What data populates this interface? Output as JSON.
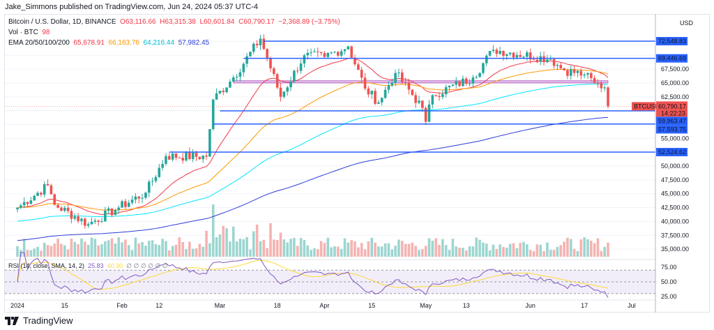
{
  "publisher": "Jake_Simmons published on TradingView.com, Jun 24, 2024 05:37 UTC-4",
  "legend": {
    "symbol": "Bitcoin / U.S. Dollar, 1D, BINANCE",
    "open": "O63,116.66",
    "high": "H63,315.38",
    "low": "L60,601.84",
    "close": "C60,790.17",
    "change": "−2,368.89 (−3.75%)",
    "vol_label": "Vol · BTC",
    "vol_value": "98",
    "ema_label": "EMA 20/50/100/200",
    "ema_values": [
      "65,678.91",
      "66,163.76",
      "64,216.44",
      "57,982.45"
    ]
  },
  "rsi_legend": {
    "label": "RSI (14, close, SMA, 14, 2)",
    "rsi": "25.83",
    "sma": "40.30",
    "na": "∅ ∅ ∅ ∅ ∅ ∅"
  },
  "price_axis": {
    "unit": "USD",
    "ticks": [
      "67,500.00",
      "65,000.00",
      "62,500.00",
      "55,000.00",
      "50,000.00",
      "47,500.00",
      "45,000.00",
      "42,500.00",
      "40,000.00",
      "37,500.00",
      "35,000.00"
    ],
    "last_price": "60,790.17",
    "countdown": "14:22:23",
    "symbol_tag": "BTCUSD"
  },
  "rsi_axis": [
    "75.00",
    "50.00",
    "25.00"
  ],
  "time_axis": [
    "2024",
    "15",
    "Feb",
    "12",
    "Mar",
    "18",
    "Apr",
    "15",
    "May",
    "13",
    "Jun",
    "17",
    "Jul"
  ],
  "footer": "TradingView",
  "colors": {
    "up": "#26a69a",
    "down": "#ef5350",
    "ema20": "#f23645",
    "ema50": "#ff9800",
    "ema100": "#00e5ff",
    "ema200": "#2e3bd6",
    "hline": "#2962ff",
    "rsi": "#7e57c2",
    "rsi_sma": "#fdd835"
  },
  "chart_data": {
    "type": "candlestick",
    "title": "Bitcoin / U.S. Dollar, 1D, BINANCE",
    "x_range": [
      "2024-01-01",
      "2024-07-01"
    ],
    "ylim": [
      33000,
      75000
    ],
    "close_anchors": [
      [
        "2024-01-01",
        42500
      ],
      [
        "2024-01-10",
        46500
      ],
      [
        "2024-01-12",
        43000
      ],
      [
        "2024-01-22",
        39500
      ],
      [
        "2024-01-31",
        42500
      ],
      [
        "2024-02-08",
        45200
      ],
      [
        "2024-02-14",
        51800
      ],
      [
        "2024-02-26",
        51700
      ],
      [
        "2024-02-28",
        62000
      ],
      [
        "2024-03-05",
        66000
      ],
      [
        "2024-03-13",
        73000
      ],
      [
        "2024-03-19",
        62500
      ],
      [
        "2024-03-26",
        70000
      ],
      [
        "2024-04-01",
        69700
      ],
      [
        "2024-04-08",
        71600
      ],
      [
        "2024-04-13",
        64000
      ],
      [
        "2024-04-17",
        61500
      ],
      [
        "2024-04-22",
        66800
      ],
      [
        "2024-04-30",
        60500
      ],
      [
        "2024-05-01",
        58000
      ],
      [
        "2024-05-03",
        62800
      ],
      [
        "2024-05-15",
        66000
      ],
      [
        "2024-05-21",
        71000
      ],
      [
        "2024-06-07",
        69300
      ],
      [
        "2024-06-11",
        67300
      ],
      [
        "2024-06-17",
        66500
      ],
      [
        "2024-06-20",
        65000
      ],
      [
        "2024-06-23",
        64200
      ],
      [
        "2024-06-24",
        60790.17
      ]
    ],
    "horizontal_levels": [
      {
        "value": 72548.83,
        "label": "72,548.83",
        "from": "2024-03-14"
      },
      {
        "value": 69446.69,
        "label": "69,446.69",
        "from": "2024-03-08"
      },
      {
        "value": 59963.47,
        "label": "59,963.47",
        "from": "2024-03-01"
      },
      {
        "value": 57593.75,
        "label": "57,593.75",
        "from": "2024-02-28"
      },
      {
        "value": 52524.62,
        "label": "52,524.62",
        "from": "2024-02-15"
      }
    ],
    "zone": {
      "low": 65000,
      "high": 65400,
      "from": "2024-03-05"
    },
    "rsi_levels": [
      75,
      50,
      25
    ]
  }
}
